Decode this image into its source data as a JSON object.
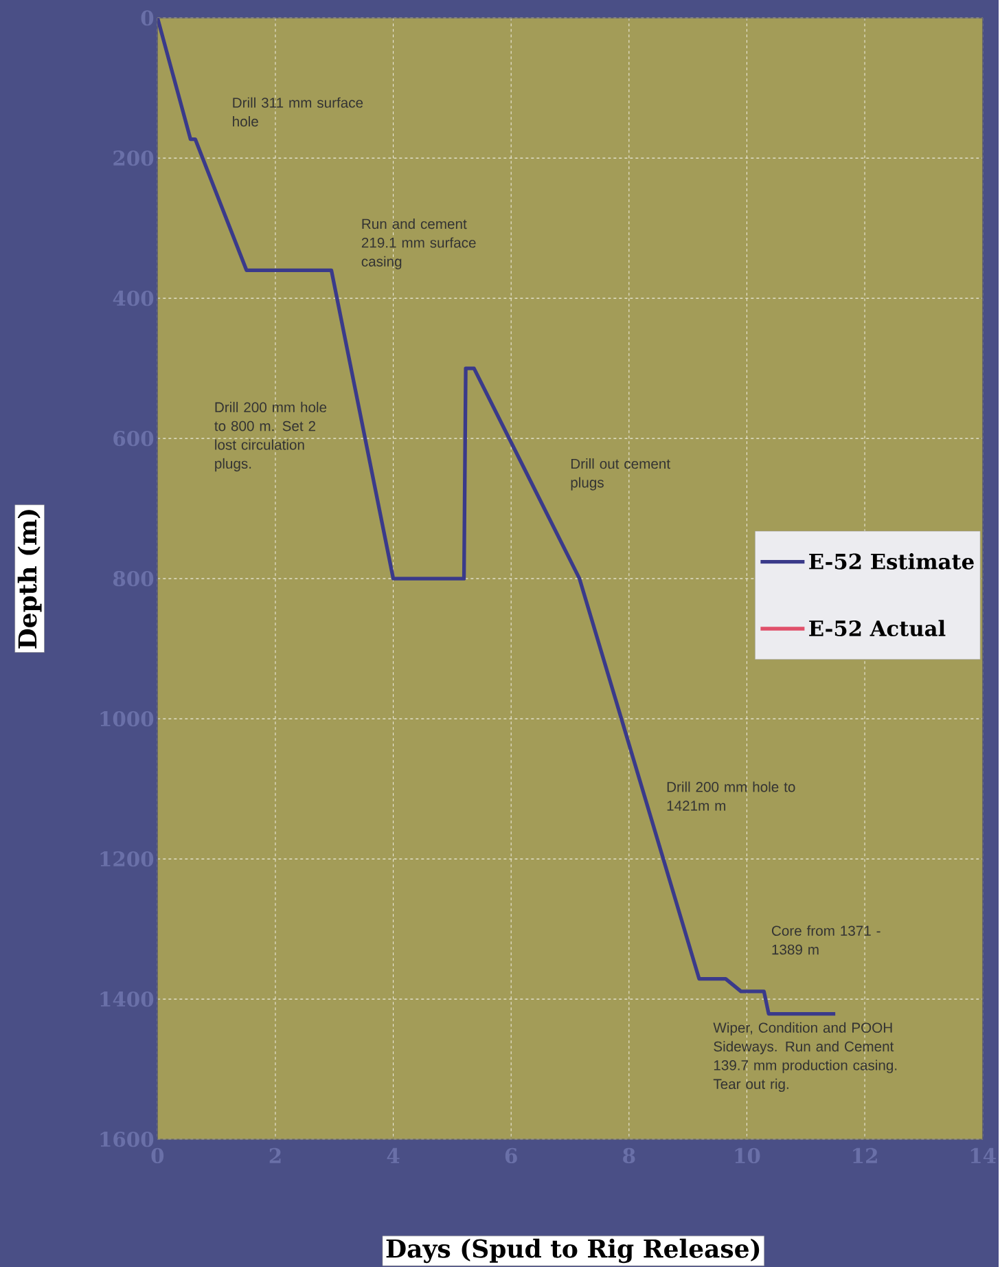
{
  "chart_data": {
    "type": "line",
    "xlabel": "Days (Spud to Rig Release)",
    "ylabel": "Depth (m)",
    "xlim": [
      0,
      14
    ],
    "ylim": [
      1600,
      0
    ],
    "xticks": [
      0,
      2,
      4,
      6,
      8,
      10,
      12,
      14
    ],
    "yticks": [
      0,
      200,
      400,
      600,
      800,
      1000,
      1200,
      1400,
      1600
    ],
    "grid": true,
    "legend": "right",
    "line_style": "solid",
    "marker": "none",
    "series": [
      {
        "name": "E-52 Estimate",
        "color": "#3a3a8a",
        "x": [
          0,
          0.56,
          0.64,
          1.51,
          2.95,
          4.0,
          5.2,
          5.23,
          5.37,
          7.16,
          9.19,
          9.64,
          9.9,
          10.29,
          10.37,
          11.5
        ],
        "values": [
          0,
          173,
          173,
          360,
          360,
          800,
          800,
          500,
          500,
          800,
          1371,
          1371,
          1389,
          1389,
          1421,
          1421
        ]
      },
      {
        "name": "E-52 Actual",
        "color": "#e0506a"
      }
    ],
    "annotations": [
      "Drill 311 mm surface hole",
      "Run and cement 219.1 mm surface casing",
      "Drill 200 mm hole to 800 m.  Set 2 lost circulation plugs.",
      "Drill out cement plugs",
      "Drill 200 mm hole to 1421m m",
      "Core from 1371 - 1389 m",
      "Wiper, Condition and POOH Sideways.  Run and Cement 139.7 mm production casing. Tear out rig."
    ]
  }
}
